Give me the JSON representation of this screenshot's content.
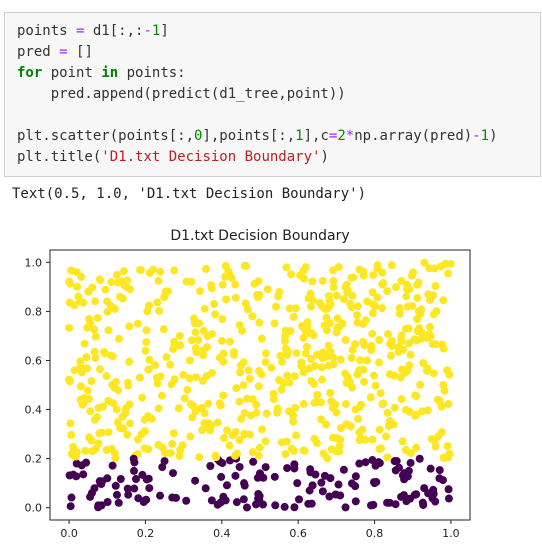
{
  "cell": {
    "code_lines": [
      "points = d1[:,:-1]",
      "pred = []",
      "for point in points:",
      "    pred.append(predict(d1_tree,point))",
      "",
      "plt.scatter(points[:,0],points[:,1],c=2*np.array(pred)-1)",
      "plt.title('D1.txt Decision Boundary')"
    ]
  },
  "output": {
    "text": "Text(0.5, 1.0, 'D1.txt Decision Boundary')"
  },
  "colors": {
    "class_positive": "#fde725",
    "class_negative": "#440154"
  },
  "chart_data": {
    "type": "scatter",
    "title": "D1.txt Decision Boundary",
    "xlabel": "",
    "ylabel": "",
    "xlim": [
      -0.05,
      1.05
    ],
    "ylim": [
      -0.05,
      1.05
    ],
    "x_ticks": [
      "0.0",
      "0.2",
      "0.4",
      "0.6",
      "0.8",
      "1.0"
    ],
    "y_ticks": [
      "0.0",
      "0.2",
      "0.4",
      "0.6",
      "0.8",
      "1.0"
    ],
    "decision_boundary_y": 0.2,
    "grid": false,
    "series": [
      {
        "class": 1,
        "color": "#fde725",
        "x": [
          0.02,
          0.05,
          0.08,
          0.12,
          0.15,
          0.18,
          0.22,
          0.25,
          0.29,
          0.32,
          0.35,
          0.38,
          0.42,
          0.45,
          0.48,
          0.52,
          0.55,
          0.58,
          0.62,
          0.65,
          0.68,
          0.72,
          0.75,
          0.78,
          0.82,
          0.85,
          0.88,
          0.92,
          0.95,
          0.98,
          0.03,
          0.07,
          0.11,
          0.14,
          0.19,
          0.23,
          0.27,
          0.31,
          0.36,
          0.4,
          0.44,
          0.49,
          0.53,
          0.57,
          0.61,
          0.66,
          0.7,
          0.74,
          0.79,
          0.83,
          0.87,
          0.91,
          0.96,
          0.99
        ],
        "y": [
          0.96,
          0.88,
          0.93,
          0.81,
          0.9,
          0.75,
          0.97,
          0.86,
          0.7,
          0.92,
          0.64,
          0.83,
          0.95,
          0.58,
          0.78,
          0.89,
          0.52,
          0.72,
          0.98,
          0.46,
          0.66,
          0.85,
          0.4,
          0.6,
          0.91,
          0.34,
          0.55,
          0.79,
          0.28,
          0.5,
          0.44,
          0.24,
          0.62,
          0.37,
          0.3,
          0.53,
          0.26,
          0.48,
          0.33,
          0.68,
          0.22,
          0.42,
          0.57,
          0.27,
          0.74,
          0.36,
          0.23,
          0.61,
          0.45,
          0.29,
          0.69,
          0.38,
          0.25,
          0.56
        ]
      },
      {
        "class": -1,
        "color": "#440154",
        "x": [
          0.02,
          0.06,
          0.1,
          0.13,
          0.17,
          0.21,
          0.25,
          0.28,
          0.33,
          0.37,
          0.41,
          0.46,
          0.5,
          0.54,
          0.59,
          0.63,
          0.67,
          0.71,
          0.76,
          0.8,
          0.84,
          0.89,
          0.93,
          0.97
        ],
        "y": [
          0.18,
          0.06,
          0.12,
          0.02,
          0.15,
          0.08,
          0.19,
          0.04,
          0.11,
          0.17,
          0.03,
          0.09,
          0.14,
          0.01,
          0.16,
          0.07,
          0.13,
          0.05,
          0.18,
          0.1,
          0.02,
          0.15,
          0.08,
          0.12
        ]
      }
    ]
  }
}
